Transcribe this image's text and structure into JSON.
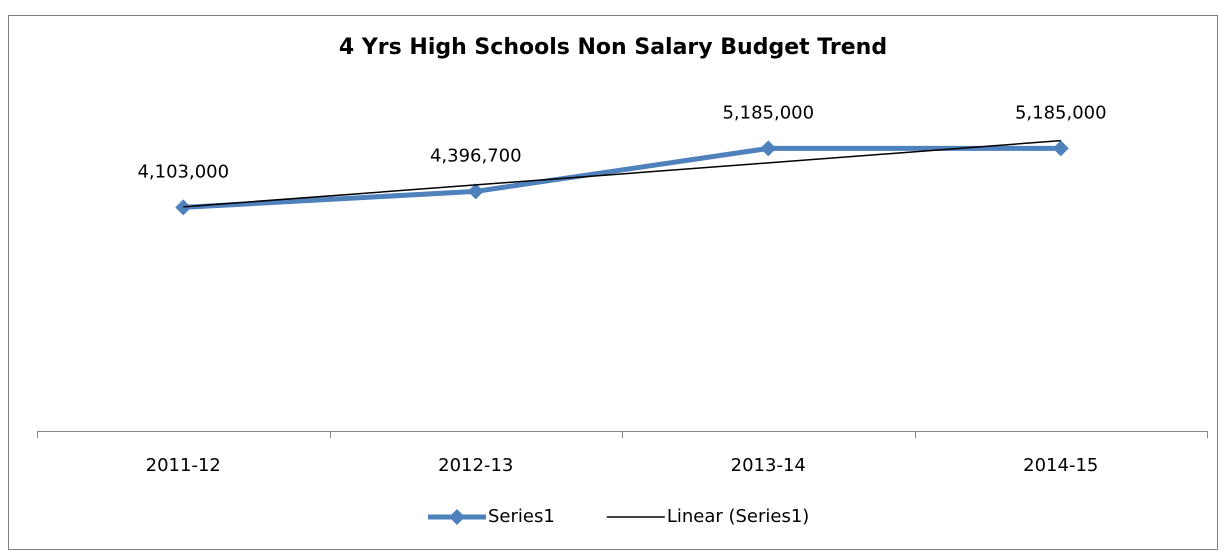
{
  "chart_data": {
    "type": "line",
    "title": "4 Yrs High Schools Non Salary Budget Trend",
    "categories": [
      "2011-12",
      "2012-13",
      "2013-14",
      "2014-15"
    ],
    "series": [
      {
        "name": "Series1",
        "color": "#4f81bd",
        "values": [
          4103000,
          4396700,
          5185000,
          5185000
        ],
        "value_labels": [
          "4,103,000",
          "4,396,700",
          "5,185,000",
          "5,185,000"
        ]
      },
      {
        "name": "Linear (Series1)",
        "color": "#000000",
        "values": [
          4112280,
          4515710,
          4919140,
          5327570
        ]
      }
    ],
    "ylim": [
      0,
      6000000
    ],
    "legend": "bottom"
  }
}
